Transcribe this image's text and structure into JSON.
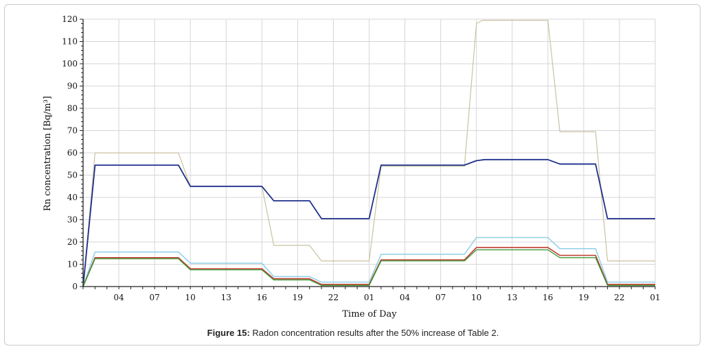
{
  "caption": {
    "label": "Figure 15:",
    "text": " Radon concentration results after the 50% increase of Table 2."
  },
  "chart_data": {
    "type": "line",
    "title": "",
    "xlabel": "Time of Day",
    "ylabel": "Rn concentration [Bq/m³]",
    "ylim": [
      0,
      120
    ],
    "xlim": [
      0,
      48
    ],
    "grid": true,
    "yticks": [
      0,
      10,
      20,
      30,
      40,
      50,
      60,
      70,
      80,
      90,
      100,
      110,
      120
    ],
    "xticks": [
      {
        "x": 3,
        "label": "04"
      },
      {
        "x": 6,
        "label": "07"
      },
      {
        "x": 9,
        "label": "10"
      },
      {
        "x": 12,
        "label": "13"
      },
      {
        "x": 15,
        "label": "16"
      },
      {
        "x": 18,
        "label": "19"
      },
      {
        "x": 21,
        "label": "22"
      },
      {
        "x": 24,
        "label": "01"
      },
      {
        "x": 27,
        "label": "04"
      },
      {
        "x": 30,
        "label": "07"
      },
      {
        "x": 33,
        "label": "10"
      },
      {
        "x": 36,
        "label": "13"
      },
      {
        "x": 39,
        "label": "16"
      },
      {
        "x": 42,
        "label": "19"
      },
      {
        "x": 45,
        "label": "22"
      },
      {
        "x": 48,
        "label": "01"
      }
    ],
    "series": [
      {
        "color": "#c9c2a0",
        "width": 1.2,
        "points": [
          [
            0,
            0
          ],
          [
            1,
            60
          ],
          [
            8,
            60
          ],
          [
            9,
            45
          ],
          [
            15,
            45
          ],
          [
            16,
            18.5
          ],
          [
            19,
            18.5
          ],
          [
            20,
            11.5
          ],
          [
            24,
            11.5
          ],
          [
            25,
            54
          ],
          [
            32,
            54
          ],
          [
            33,
            118
          ],
          [
            33.5,
            119.5
          ],
          [
            39,
            119.5
          ],
          [
            40,
            69.5
          ],
          [
            43,
            69.5
          ],
          [
            44,
            11.5
          ],
          [
            48,
            11.5
          ]
        ]
      },
      {
        "color": "#1f2f8c",
        "width": 1.8,
        "points": [
          [
            0,
            0
          ],
          [
            1,
            54.5
          ],
          [
            8,
            54.5
          ],
          [
            9,
            45
          ],
          [
            15,
            45
          ],
          [
            16,
            38.5
          ],
          [
            19,
            38.5
          ],
          [
            20,
            30.5
          ],
          [
            24,
            30.5
          ],
          [
            25,
            54.5
          ],
          [
            32,
            54.5
          ],
          [
            33,
            56.5
          ],
          [
            33.7,
            57
          ],
          [
            39,
            57
          ],
          [
            40,
            55
          ],
          [
            43,
            55
          ],
          [
            44,
            30.5
          ],
          [
            48,
            30.5
          ]
        ]
      },
      {
        "color": "#8fd0e8",
        "width": 1.5,
        "points": [
          [
            0,
            0
          ],
          [
            1,
            15.5
          ],
          [
            8,
            15.5
          ],
          [
            9,
            10.5
          ],
          [
            15,
            10.5
          ],
          [
            16,
            4.5
          ],
          [
            19,
            4.5
          ],
          [
            20,
            2
          ],
          [
            24,
            2
          ],
          [
            25,
            14.5
          ],
          [
            32,
            14.5
          ],
          [
            33,
            22
          ],
          [
            39,
            22
          ],
          [
            40,
            17
          ],
          [
            43,
            17
          ],
          [
            44,
            2
          ],
          [
            48,
            2
          ]
        ]
      },
      {
        "color": "#c0392b",
        "width": 1.6,
        "points": [
          [
            0,
            0
          ],
          [
            1,
            13
          ],
          [
            8,
            13
          ],
          [
            9,
            8
          ],
          [
            15,
            8
          ],
          [
            16,
            3.5
          ],
          [
            19,
            3.5
          ],
          [
            20,
            1
          ],
          [
            24,
            1
          ],
          [
            25,
            12
          ],
          [
            32,
            12
          ],
          [
            33,
            17.5
          ],
          [
            39,
            17.5
          ],
          [
            40,
            14
          ],
          [
            43,
            14
          ],
          [
            44,
            1
          ],
          [
            48,
            1
          ]
        ]
      },
      {
        "color": "#3a9a3a",
        "width": 1.4,
        "points": [
          [
            0,
            0
          ],
          [
            1,
            12.5
          ],
          [
            8,
            12.5
          ],
          [
            9,
            7.5
          ],
          [
            15,
            7.5
          ],
          [
            16,
            3
          ],
          [
            19,
            3
          ],
          [
            20,
            0.5
          ],
          [
            24,
            0.5
          ],
          [
            25,
            11.5
          ],
          [
            32,
            11.5
          ],
          [
            33,
            16.5
          ],
          [
            39,
            16.5
          ],
          [
            40,
            13
          ],
          [
            43,
            13
          ],
          [
            44,
            0.5
          ],
          [
            48,
            0.5
          ]
        ]
      }
    ]
  }
}
